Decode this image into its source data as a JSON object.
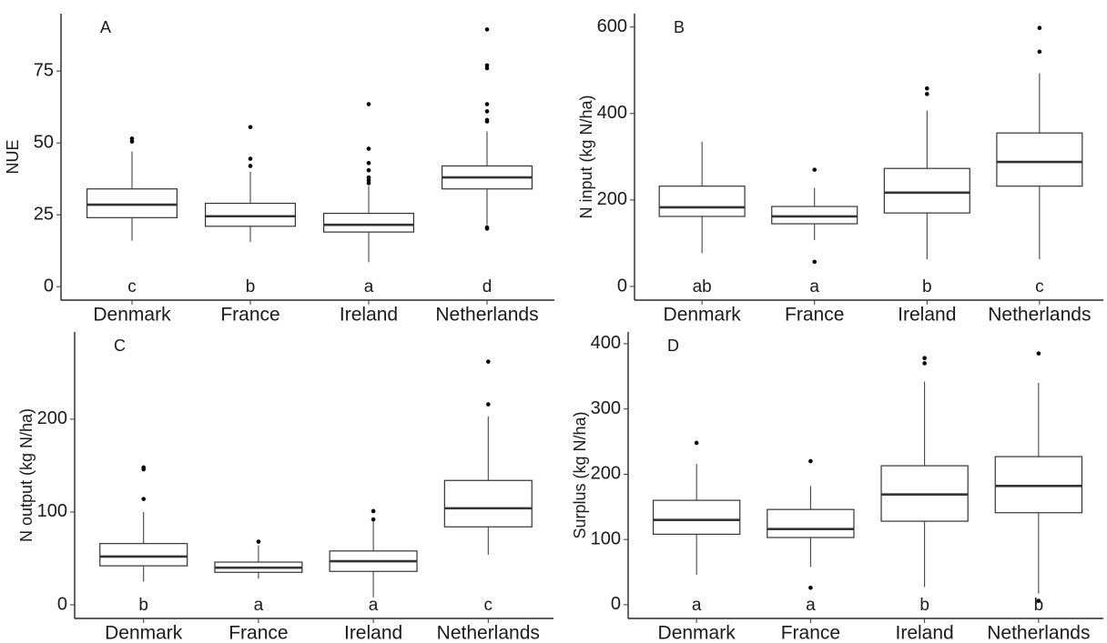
{
  "chart_data": [
    {
      "type": "box",
      "panel_label": "A",
      "y_label": "NUE",
      "categories": [
        "Denmark",
        "France",
        "Ireland",
        "Netherlands"
      ],
      "boxes": [
        {
          "whisker_low": 16,
          "q1": 24,
          "median": 28.5,
          "q3": 34,
          "whisker_high": 47,
          "outliers": [
            50.5,
            51.5
          ]
        },
        {
          "whisker_low": 15.5,
          "q1": 21,
          "median": 24.5,
          "q3": 29,
          "whisker_high": 40,
          "outliers": [
            42,
            44.5,
            55.5
          ]
        },
        {
          "whisker_low": 8.5,
          "q1": 19,
          "median": 21.5,
          "q3": 25.5,
          "whisker_high": 35,
          "outliers": [
            36,
            37,
            38,
            40.5,
            43,
            48,
            63.5
          ]
        },
        {
          "whisker_low": 21.5,
          "q1": 34,
          "median": 38,
          "q3": 42,
          "whisker_high": 54,
          "outliers": [
            20.2,
            20.6,
            57.5,
            58,
            61,
            63.5,
            76,
            77,
            89.5
          ]
        }
      ],
      "group_letters": [
        "c",
        "b",
        "a",
        "d"
      ],
      "ylim": [
        -4.7,
        95
      ],
      "yticks": [
        0,
        25,
        50,
        75
      ],
      "color": "#333333"
    },
    {
      "type": "box",
      "panel_label": "B",
      "y_label": "N input (kg N/ha)",
      "categories": [
        "Denmark",
        "France",
        "Ireland",
        "Netherlands"
      ],
      "boxes": [
        {
          "whisker_low": 77,
          "q1": 162,
          "median": 183,
          "q3": 232,
          "whisker_high": 335,
          "outliers": []
        },
        {
          "whisker_low": 107,
          "q1": 145,
          "median": 162,
          "q3": 185,
          "whisker_high": 228,
          "outliers": [
            57,
            270
          ]
        },
        {
          "whisker_low": 63,
          "q1": 170,
          "median": 217,
          "q3": 273,
          "whisker_high": 407,
          "outliers": [
            445,
            458
          ]
        },
        {
          "whisker_low": 63,
          "q1": 232,
          "median": 288,
          "q3": 355,
          "whisker_high": 493,
          "outliers": [
            543,
            598
          ]
        }
      ],
      "group_letters": [
        "ab",
        "a",
        "b",
        "c"
      ],
      "ylim": [
        -31.6,
        631
      ],
      "yticks": [
        0,
        200,
        400,
        600
      ],
      "color": "#333333"
    },
    {
      "type": "box",
      "panel_label": "C",
      "y_label": "N output (kg N/ha)",
      "categories": [
        "Denmark",
        "France",
        "Ireland",
        "Netherlands"
      ],
      "boxes": [
        {
          "whisker_low": 25,
          "q1": 42,
          "median": 52,
          "q3": 66,
          "whisker_high": 100,
          "outliers": [
            114,
            146,
            148
          ]
        },
        {
          "whisker_low": 28,
          "q1": 35,
          "median": 40,
          "q3": 46,
          "whisker_high": 64,
          "outliers": [
            68
          ]
        },
        {
          "whisker_low": 8,
          "q1": 36,
          "median": 47,
          "q3": 58,
          "whisker_high": 90,
          "outliers": [
            92,
            101
          ]
        },
        {
          "whisker_low": 54,
          "q1": 84,
          "median": 104,
          "q3": 134,
          "whisker_high": 203,
          "outliers": [
            216,
            262
          ]
        }
      ],
      "group_letters": [
        "b",
        "a",
        "a",
        "c"
      ],
      "ylim": [
        -14.7,
        294
      ],
      "yticks": [
        0,
        100,
        200
      ],
      "color": "#333333"
    },
    {
      "type": "box",
      "panel_label": "D",
      "y_label": "Surplus (kg N/ha)",
      "categories": [
        "Denmark",
        "France",
        "Ireland",
        "Netherlands"
      ],
      "boxes": [
        {
          "whisker_low": 46,
          "q1": 108,
          "median": 130,
          "q3": 160,
          "whisker_high": 216,
          "outliers": [
            248
          ]
        },
        {
          "whisker_low": 58,
          "q1": 103,
          "median": 116,
          "q3": 146,
          "whisker_high": 182,
          "outliers": [
            26,
            220
          ]
        },
        {
          "whisker_low": 27,
          "q1": 128,
          "median": 169,
          "q3": 213,
          "whisker_high": 342,
          "outliers": [
            370,
            378
          ]
        },
        {
          "whisker_low": 17,
          "q1": 141,
          "median": 182,
          "q3": 227,
          "whisker_high": 340,
          "outliers": [
            6,
            385
          ]
        }
      ],
      "group_letters": [
        "a",
        "a",
        "b",
        "b"
      ],
      "ylim": [
        -21,
        418
      ],
      "yticks": [
        0,
        100,
        200,
        300,
        400
      ],
      "color": "#333333"
    }
  ]
}
